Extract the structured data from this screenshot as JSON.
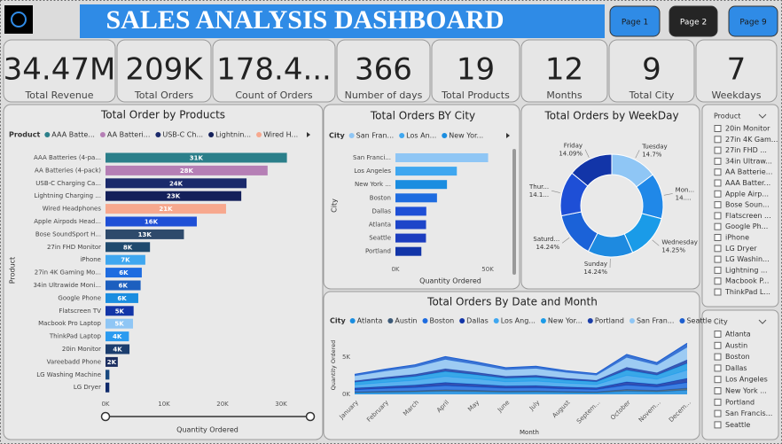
{
  "header": {
    "title": "SALES ANALYSIS DASHBOARD",
    "pages": [
      "Page 1",
      "Page 2",
      "Page 9"
    ]
  },
  "kpis": [
    {
      "value": "34.47M",
      "label": "Total Revenue"
    },
    {
      "value": "209K",
      "label": "Total Orders"
    },
    {
      "value": "178.4...",
      "label": "Count of Orders"
    },
    {
      "value": "366",
      "label": "Number of days"
    },
    {
      "value": "19",
      "label": "Total Products"
    },
    {
      "value": "12",
      "label": "Months"
    },
    {
      "value": "9",
      "label": "Total City"
    },
    {
      "value": "7",
      "label": "Weekdays"
    }
  ],
  "chart_data": [
    {
      "type": "hbar",
      "title": "Total Order by Products",
      "legend_title": "Product",
      "legend": [
        {
          "name": "AAA Batte...",
          "color": "#2b7f8a"
        },
        {
          "name": "AA Batteri...",
          "color": "#b57fb5"
        },
        {
          "name": "USB-C Ch...",
          "color": "#1b2a6b"
        },
        {
          "name": "Lightnin...",
          "color": "#14205a"
        },
        {
          "name": "Wired H...",
          "color": "#f7a88e"
        }
      ],
      "categories": [
        "AAA Batteries (4-pa...",
        "AA Batteries (4-pack)",
        "USB-C Charging Ca...",
        "Lightning Charging ...",
        "Wired Headphones",
        "Apple Airpods Head...",
        "Bose SoundSport H...",
        "27in FHD Monitor",
        "iPhone",
        "27in 4K Gaming Mo...",
        "34in Ultrawide Moni...",
        "Google Phone",
        "Flatscreen TV",
        "Macbook Pro Laptop",
        "ThinkPad Laptop",
        "20in Monitor",
        "Vareebadd Phone",
        "LG Washing Machine",
        "LG Dryer"
      ],
      "values": [
        31000,
        27700,
        24100,
        23200,
        20600,
        15600,
        13400,
        7600,
        6800,
        6200,
        6000,
        5600,
        4800,
        4700,
        4000,
        4100,
        2100,
        660,
        650
      ],
      "value_labels": [
        "31K",
        "28K",
        "24K",
        "23K",
        "21K",
        "16K",
        "13K",
        "8K",
        "7K",
        "6K",
        "6K",
        "6K",
        "5K",
        "5K",
        "4K",
        "4K",
        "2K",
        null,
        null
      ],
      "colors": [
        "#2b7f8a",
        "#b57fb5",
        "#1b2a6b",
        "#14205a",
        "#f7a88e",
        "#1e4fd6",
        "#2e4a6b",
        "#1f4a6e",
        "#3fa7f0",
        "#1e6ce0",
        "#1c5fbf",
        "#1a8de0",
        "#1235a8",
        "#8fc6f5",
        "#2b9bf0",
        "#1b3d6e",
        "#1b2e60",
        "#1a4a80",
        "#0f2a6b"
      ],
      "xlim": [
        0,
        35000
      ],
      "xticks": [
        {
          "value": 0,
          "label": "0K"
        },
        {
          "value": 10000,
          "label": "10K"
        },
        {
          "value": 20000,
          "label": "20K"
        },
        {
          "value": 30000,
          "label": "30K"
        }
      ],
      "x_label": "Quantity Ordered",
      "y_label": "Product"
    },
    {
      "type": "hbar",
      "title": "Total Orders BY City",
      "legend_title": "City",
      "legend": [
        {
          "name": "San Fran...",
          "color": "#8fc6f5"
        },
        {
          "name": "Los An...",
          "color": "#3fa7f0"
        },
        {
          "name": "New Yor...",
          "color": "#1a8de0"
        }
      ],
      "categories": [
        "San Franci...",
        "Los Angeles",
        "New York ...",
        "Boston",
        "Dallas",
        "Atlanta",
        "Seattle",
        "Portland"
      ],
      "values": [
        50239,
        33289,
        27932,
        22528,
        16730,
        16602,
        16553,
        14053
      ],
      "colors": [
        "#8fc6f5",
        "#3fa7f0",
        "#1a8de0",
        "#1e6ce0",
        "#1e4fd6",
        "#1d45c9",
        "#1c3dbf",
        "#1235a8"
      ],
      "xlim": [
        0,
        62000
      ],
      "xticks": [
        {
          "value": 0,
          "label": "0K"
        },
        {
          "value": 50000,
          "label": "50K"
        }
      ],
      "x_label": "Quantity Ordered",
      "y_label": "City"
    },
    {
      "type": "donut",
      "title": "Total Orders by WeekDay",
      "categories": [
        "Tuesday",
        "Mon...",
        "Wednesday",
        "Sunday",
        "Saturd...",
        "Thur...",
        "Friday"
      ],
      "values": [
        14.7,
        14.38,
        14.25,
        14.24,
        14.24,
        14.1,
        14.09
      ],
      "value_labels": [
        "14.7%",
        "14....",
        "14.25%",
        "14.24%",
        "14.24%",
        "14.1...",
        "14.09%"
      ],
      "colors": [
        "#8fc6f5",
        "#2088e8",
        "#1a9be8",
        "#1e8ae0",
        "#1b62d8",
        "#1e4fd6",
        "#1235a8"
      ]
    },
    {
      "type": "area",
      "title": "Total Orders By Date and Month",
      "legend_title": "City",
      "categories": [
        "January",
        "February",
        "March",
        "April",
        "May",
        "June",
        "July",
        "August",
        "Septem...",
        "October",
        "Novem...",
        "Decem..."
      ],
      "series": [
        {
          "name": "Atlanta",
          "color": "#1a8de0",
          "values": [
            216,
            272,
            320,
            408,
            352,
            288,
            304,
            256,
            224,
            432,
            344,
            552
          ]
        },
        {
          "name": "Austin",
          "color": "#3c5a78",
          "values": [
            108,
            136,
            160,
            204,
            176,
            144,
            152,
            128,
            112,
            216,
            172,
            276
          ]
        },
        {
          "name": "Boston",
          "color": "#1e6ce0",
          "values": [
            297,
            374,
            440,
            561,
            484,
            396,
            418,
            352,
            308,
            594,
            473,
            759
          ]
        },
        {
          "name": "Dallas",
          "color": "#1235a8",
          "values": [
            220,
            270,
            318,
            410,
            350,
            290,
            300,
            258,
            226,
            430,
            346,
            550
          ]
        },
        {
          "name": "Los Ang...",
          "color": "#3fa7f0",
          "values": [
            432,
            544,
            640,
            816,
            704,
            576,
            608,
            512,
            448,
            864,
            688,
            1104
          ]
        },
        {
          "name": "New Yor...",
          "color": "#1a9be8",
          "values": [
            351,
            442,
            520,
            663,
            572,
            468,
            494,
            416,
            364,
            702,
            559,
            897
          ]
        },
        {
          "name": "Portland",
          "color": "#1b3ea8",
          "values": [
            189,
            238,
            280,
            357,
            308,
            252,
            266,
            224,
            196,
            378,
            301,
            483
          ]
        },
        {
          "name": "San Fran...",
          "color": "#8fc6f5",
          "values": [
            648,
            816,
            960,
            1224,
            1056,
            864,
            912,
            768,
            672,
            1296,
            1032,
            1656
          ]
        },
        {
          "name": "Seattle",
          "color": "#1d5fd0",
          "values": [
            214,
            268,
            322,
            406,
            354,
            286,
            306,
            254,
            222,
            434,
            342,
            554
          ]
        }
      ],
      "ylim": [
        0,
        9000
      ],
      "yticks": [
        {
          "value": 0,
          "label": "0K"
        },
        {
          "value": 5000,
          "label": "5K"
        }
      ],
      "x_label": "Month",
      "y_label": "Quantity Ordered"
    }
  ],
  "slicers": [
    {
      "title": "Product",
      "items": [
        "20in Monitor",
        "27in 4K Gam...",
        "27in FHD ...",
        "34in Ultraw...",
        "AA Batterie...",
        "AAA Batter...",
        "Apple Airp...",
        "Bose Soun...",
        "Flatscreen ...",
        "Google Ph...",
        "iPhone",
        "LG Dryer",
        "LG Washin...",
        "Lightning ...",
        "Macbook P...",
        "ThinkPad L..."
      ]
    },
    {
      "title": "City",
      "items": [
        "Atlanta",
        "Austin",
        "Boston",
        "Dallas",
        "Los Angeles",
        "New York ...",
        "Portland",
        "San Francis...",
        "Seattle"
      ]
    }
  ]
}
